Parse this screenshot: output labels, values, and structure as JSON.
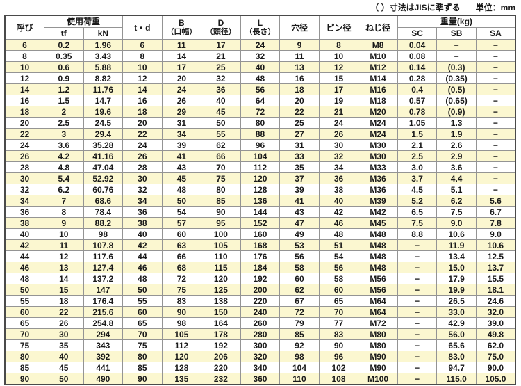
{
  "note": "（ ）寸法はJISに準ずる",
  "unit": "単位：mm",
  "colors": {
    "row_alt_background": "#FBF7D0",
    "row_background": "#FFFFFF",
    "border_inner": "#949494",
    "border_outer": "#4A4A4A",
    "text": "#1A1A1A"
  },
  "chart_data": {
    "type": "table",
    "title": "",
    "header": {
      "yobi": "呼び",
      "load_group": "使用荷重",
      "load_sub": [
        "tf",
        "kN"
      ],
      "td": "t・d",
      "b_main": "B",
      "b_sub": "（口幅）",
      "d_main": "D",
      "d_sub": "（頭径）",
      "l_main": "L",
      "l_sub": "（長さ）",
      "hole": "穴径",
      "pin": "ピン径",
      "screw": "ねじ径",
      "weight_group": "重量(kg)",
      "weight_sub": [
        "SC",
        "SB",
        "SA"
      ]
    },
    "columns": [
      "呼び",
      "使用荷重 tf",
      "使用荷重 kN",
      "t・d",
      "B（口幅）",
      "D（頭径）",
      "L（長さ）",
      "穴径",
      "ピン径",
      "ねじ径",
      "重量(kg) SC",
      "重量(kg) SB",
      "重量(kg) SA"
    ],
    "rows": [
      [
        "6",
        "0.2",
        "1.96",
        "6",
        "11",
        "17",
        "24",
        "9",
        "8",
        "M8",
        "0.04",
        "−",
        "−"
      ],
      [
        "8",
        "0.35",
        "3.43",
        "8",
        "14",
        "21",
        "32",
        "11",
        "10",
        "M10",
        "0.08",
        "−",
        "−"
      ],
      [
        "10",
        "0.6",
        "5.88",
        "10",
        "17",
        "25",
        "40",
        "13",
        "12",
        "M12",
        "0.14",
        "(0.3)",
        "−"
      ],
      [
        "12",
        "0.9",
        "8.82",
        "12",
        "20",
        "32",
        "48",
        "16",
        "15",
        "M14",
        "0.28",
        "(0.35)",
        "−"
      ],
      [
        "14",
        "1.2",
        "11.76",
        "14",
        "24",
        "36",
        "56",
        "18",
        "17",
        "M16",
        "0.4",
        "(0.5)",
        "−"
      ],
      [
        "16",
        "1.5",
        "14.7",
        "16",
        "26",
        "40",
        "64",
        "20",
        "19",
        "M18",
        "0.57",
        "(0.65)",
        "−"
      ],
      [
        "18",
        "2",
        "19.6",
        "18",
        "29",
        "45",
        "72",
        "22",
        "21",
        "M20",
        "0.78",
        "(0.9)",
        "−"
      ],
      [
        "20",
        "2.5",
        "24.5",
        "20",
        "31",
        "50",
        "80",
        "25",
        "24",
        "M24",
        "1.05",
        "1.3",
        "−"
      ],
      [
        "22",
        "3",
        "29.4",
        "22",
        "34",
        "55",
        "88",
        "27",
        "26",
        "M24",
        "1.5",
        "1.9",
        "−"
      ],
      [
        "24",
        "3.6",
        "35.28",
        "24",
        "39",
        "62",
        "96",
        "31",
        "30",
        "M30",
        "2.1",
        "2.6",
        "−"
      ],
      [
        "26",
        "4.2",
        "41.16",
        "26",
        "41",
        "66",
        "104",
        "33",
        "32",
        "M30",
        "2.5",
        "2.9",
        "−"
      ],
      [
        "28",
        "4.8",
        "47.04",
        "28",
        "43",
        "70",
        "112",
        "35",
        "34",
        "M33",
        "3.0",
        "3.6",
        "−"
      ],
      [
        "30",
        "5.4",
        "52.92",
        "30",
        "45",
        "75",
        "120",
        "37",
        "36",
        "M36",
        "3.7",
        "4.4",
        "−"
      ],
      [
        "32",
        "6.2",
        "60.76",
        "32",
        "48",
        "80",
        "128",
        "39",
        "38",
        "M36",
        "4.5",
        "5.1",
        "−"
      ],
      [
        "34",
        "7",
        "68.6",
        "34",
        "50",
        "85",
        "136",
        "41",
        "40",
        "M39",
        "5.2",
        "6.2",
        "5.6"
      ],
      [
        "36",
        "8",
        "78.4",
        "36",
        "54",
        "90",
        "144",
        "43",
        "42",
        "M42",
        "6.5",
        "7.5",
        "6.7"
      ],
      [
        "38",
        "9",
        "88.2",
        "38",
        "57",
        "95",
        "152",
        "47",
        "46",
        "M45",
        "7.5",
        "9.0",
        "7.8"
      ],
      [
        "40",
        "10",
        "98",
        "40",
        "60",
        "100",
        "160",
        "49",
        "48",
        "M48",
        "8.8",
        "10.6",
        "9.0"
      ],
      [
        "42",
        "11",
        "107.8",
        "42",
        "63",
        "105",
        "168",
        "53",
        "51",
        "M48",
        "−",
        "11.9",
        "10.6"
      ],
      [
        "44",
        "12",
        "117.6",
        "44",
        "66",
        "110",
        "176",
        "56",
        "54",
        "M48",
        "−",
        "13.4",
        "12.5"
      ],
      [
        "46",
        "13",
        "127.4",
        "46",
        "68",
        "115",
        "184",
        "58",
        "56",
        "M48",
        "−",
        "15.0",
        "13.7"
      ],
      [
        "48",
        "14",
        "137.2",
        "48",
        "72",
        "120",
        "192",
        "60",
        "58",
        "M56",
        "−",
        "17.9",
        "15.5"
      ],
      [
        "50",
        "15",
        "147",
        "50",
        "75",
        "125",
        "200",
        "62",
        "60",
        "M56",
        "−",
        "19.9",
        "18.1"
      ],
      [
        "55",
        "18",
        "176.4",
        "55",
        "83",
        "138",
        "220",
        "67",
        "65",
        "M64",
        "−",
        "26.5",
        "24.6"
      ],
      [
        "60",
        "22",
        "215.6",
        "60",
        "90",
        "150",
        "240",
        "72",
        "70",
        "M64",
        "−",
        "33.0",
        "32.0"
      ],
      [
        "65",
        "26",
        "254.8",
        "65",
        "98",
        "164",
        "260",
        "79",
        "77",
        "M72",
        "−",
        "42.9",
        "39.0"
      ],
      [
        "70",
        "30",
        "294",
        "70",
        "105",
        "178",
        "280",
        "85",
        "83",
        "M80",
        "−",
        "56.0",
        "49.8"
      ],
      [
        "75",
        "35",
        "343",
        "75",
        "112",
        "192",
        "300",
        "92",
        "90",
        "M80",
        "−",
        "65.6",
        "62.0"
      ],
      [
        "80",
        "40",
        "392",
        "80",
        "120",
        "206",
        "320",
        "98",
        "96",
        "M90",
        "−",
        "83.0",
        "75.0"
      ],
      [
        "85",
        "45",
        "441",
        "85",
        "128",
        "220",
        "340",
        "104",
        "102",
        "M90",
        "−",
        "94.7",
        "90.0"
      ],
      [
        "90",
        "50",
        "490",
        "90",
        "135",
        "232",
        "360",
        "110",
        "108",
        "M100",
        "−",
        "115.0",
        "105.0"
      ]
    ]
  }
}
